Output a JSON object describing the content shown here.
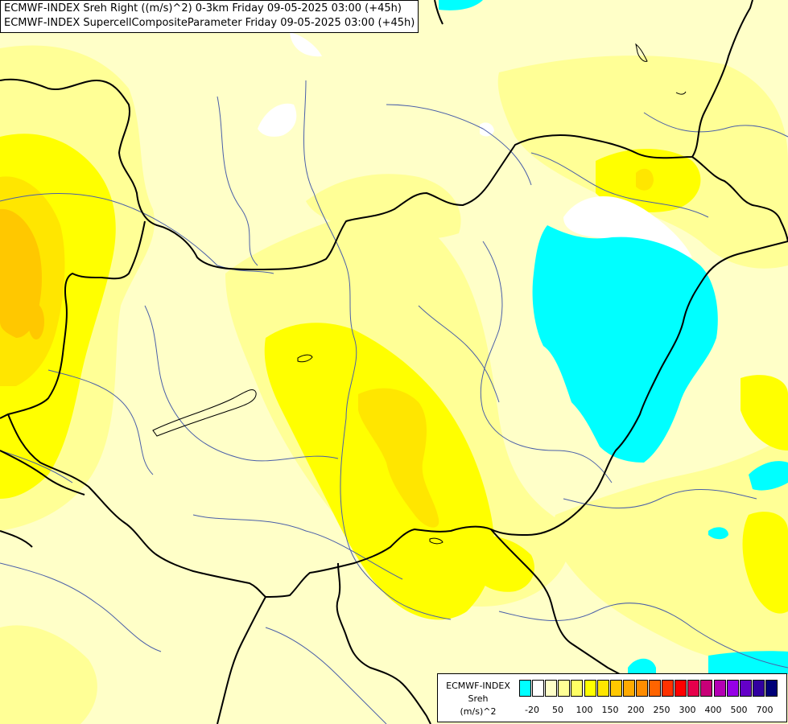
{
  "header": {
    "line1": "ECMWF-INDEX Sreh Right ((m/s)^2) 0-3km Friday 09-05-2025 03:00 (+45h)",
    "line2": "ECMWF-INDEX SupercellCompositeParameter Friday 09-05-2025 03:00 (+45h)"
  },
  "legend": {
    "line1": "ECMWF-INDEX",
    "line2": "Sreh",
    "line3": "(m/s)^2",
    "colors": [
      "#00ffff",
      "#ffffff",
      "#ffffc8",
      "#ffff96",
      "#ffff64",
      "#ffff00",
      "#ffe600",
      "#ffc800",
      "#ffaa00",
      "#ff8c00",
      "#ff6400",
      "#ff3200",
      "#ff0000",
      "#e6004b",
      "#c80078",
      "#b400b4",
      "#9600e6",
      "#6400c8",
      "#3200a0",
      "#000078"
    ],
    "ticks": [
      "-20",
      "50",
      "100",
      "150",
      "200",
      "250",
      "300",
      "400",
      "500",
      "700"
    ]
  },
  "colors": {
    "cyan": "#00ffff",
    "white": "#ffffff",
    "pale": "#ffffc8",
    "light_yellow": "#ffff96",
    "yellow": "#ffff00",
    "gold": "#ffe600",
    "orange": "#ffc800",
    "border": "#000000",
    "river": "#4a5fa8"
  }
}
